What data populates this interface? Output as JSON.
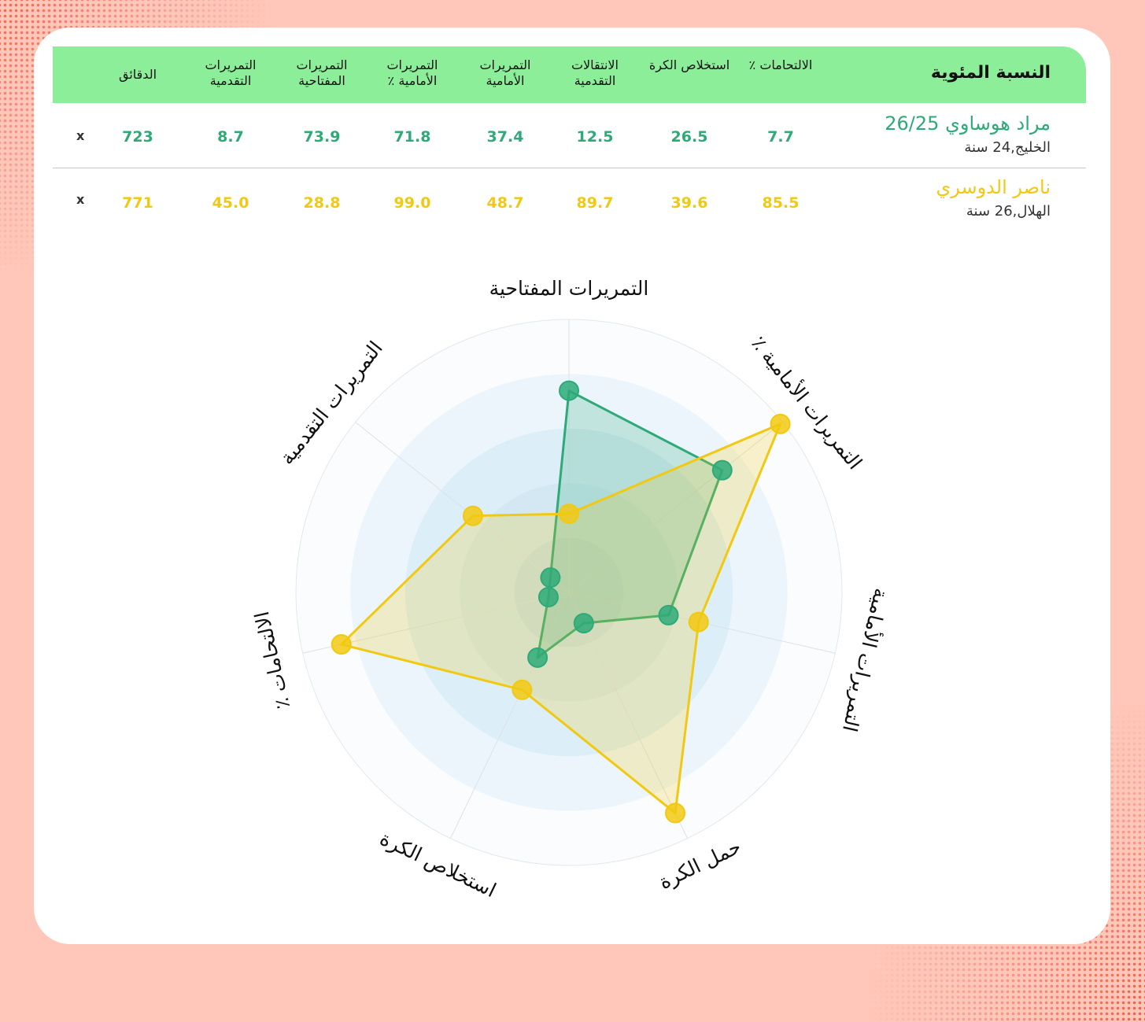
{
  "table": {
    "title": "النسبة المئوية",
    "columns": [
      "الالتحامات ٪",
      "استخلاص الكرة",
      "الانتقالات التقدمية",
      "التمريرات الأمامية",
      "التمريرات الأمامية ٪",
      "التمريرات المفتاحية",
      "التمريرات التقدمية",
      "الدقائق"
    ],
    "players": [
      {
        "name": "مراد هوساوي 26/25",
        "info": "الخليج,24 سنة",
        "values": [
          "7.7",
          "26.5",
          "12.5",
          "37.4",
          "71.8",
          "73.9",
          "8.7",
          "723"
        ],
        "remove": "x",
        "color": "#2eaa78"
      },
      {
        "name": "ناصر الدوسري",
        "info": "الهلال,26 سنة",
        "values": [
          "85.5",
          "39.6",
          "89.7",
          "48.7",
          "99.0",
          "28.8",
          "45.0",
          "771"
        ],
        "remove": "x",
        "color": "#f2c912"
      }
    ]
  },
  "chart_data": {
    "type": "radar",
    "axes": [
      "التمريرات المفتاحية",
      "التمريرات الأمامية ٪",
      "التمريرات الأمامية",
      "حمل الكرة",
      "استخلاص الكرة",
      "الالتحامات ٪",
      "التمريرات التقدمية"
    ],
    "range": [
      0,
      100
    ],
    "rings": 5,
    "series": [
      {
        "name": "مراد هوساوي 26/25",
        "color": "#2eaa78",
        "values": [
          73.9,
          71.8,
          37.4,
          12.5,
          26.5,
          7.7,
          8.7
        ]
      },
      {
        "name": "ناصر الدوسري",
        "color": "#f2c912",
        "values": [
          28.8,
          99.0,
          48.7,
          89.7,
          39.6,
          85.5,
          45.0
        ]
      }
    ]
  }
}
